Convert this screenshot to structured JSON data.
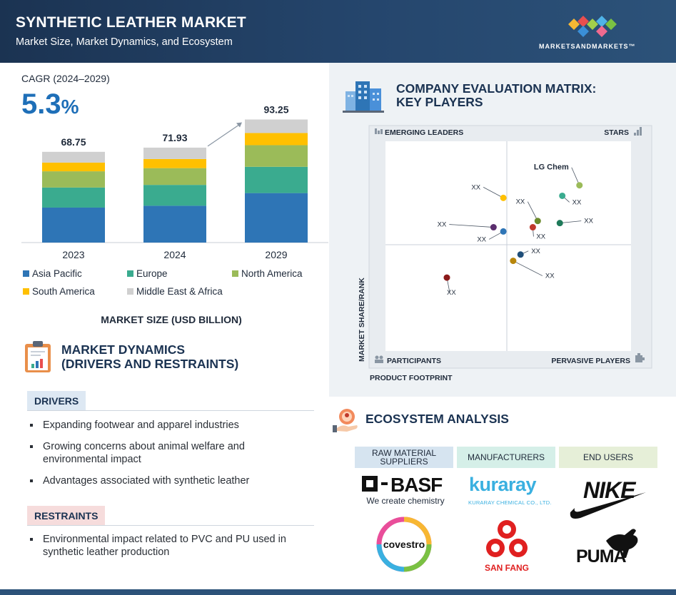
{
  "header": {
    "title": "SYNTHETIC LEATHER MARKET",
    "subtitle": "Market Size, Market Dynamics, and Ecosystem",
    "logo_text": "MARKETSANDMARKETS™",
    "bg_color": "#1b3352"
  },
  "cagr": {
    "label": "CAGR (2024–2029)",
    "value": "5.3",
    "unit": "%"
  },
  "chart_data": {
    "type": "bar",
    "stacked": true,
    "categories": [
      "2023",
      "2024",
      "2029"
    ],
    "totals": [
      68.75,
      71.93,
      93.25
    ],
    "total_labels": [
      "68.75",
      "71.93",
      "93.25"
    ],
    "series": [
      {
        "name": "Asia Pacific",
        "color": "#2e75b6",
        "values": [
          26.5,
          27.9,
          37.5
        ]
      },
      {
        "name": "Europe",
        "color": "#3aab8f",
        "values": [
          15.2,
          15.8,
          19.9
        ]
      },
      {
        "name": "North America",
        "color": "#9bbb59",
        "values": [
          12.3,
          12.7,
          16.4
        ]
      },
      {
        "name": "South America",
        "color": "#ffc000",
        "values": [
          6.6,
          6.9,
          9.2
        ]
      },
      {
        "name": "Middle East & Africa",
        "color": "#d0d0d0",
        "values": [
          8.15,
          8.63,
          10.25
        ]
      }
    ],
    "xlabel": "MARKET SIZE (USD BILLION)",
    "ylabel": "",
    "ylim": [
      0,
      100
    ],
    "grid": false,
    "legend_position": "bottom",
    "growth_arrow": true
  },
  "dynamics": {
    "title_line1": "MARKET DYNAMICS",
    "title_line2": "(DRIVERS AND RESTRAINTS)",
    "drivers_label": "DRIVERS",
    "drivers_color": "#dde8f3",
    "drivers": [
      "Expanding footwear and apparel industries",
      "Growing concerns about animal welfare and",
      "environmental impact",
      "Advantages associated with synthetic leather"
    ],
    "restraints_label": "RESTRAINTS",
    "restraints_color": "#f6dcdc",
    "restraints": [
      "Environmental impact related to PVC and PU used in",
      "synthetic leather production"
    ]
  },
  "matrix": {
    "title_line1": "COMPANY EVALUATION MATRIX:",
    "title_line2": "KEY PLAYERS",
    "quadrants": {
      "top_left": "EMERGING LEADERS",
      "top_right": "STARS",
      "bottom_left": "PARTICIPANTS",
      "bottom_right": "PERVASIVE PLAYERS"
    },
    "y_axis": "MARKET SHARE/RANK",
    "x_axis": "PRODUCT FOOTPRINT",
    "players": [
      {
        "label": "LG Chem",
        "footprint": 0.79,
        "share": 0.79,
        "color": "#9bbb59",
        "bold": true
      },
      {
        "label": "XX",
        "footprint": 0.72,
        "share": 0.74,
        "color": "#3aab8f"
      },
      {
        "label": "XX",
        "footprint": 0.48,
        "share": 0.73,
        "color": "#ffc000"
      },
      {
        "label": "XX",
        "footprint": 0.62,
        "share": 0.62,
        "color": "#6a8a2a"
      },
      {
        "label": "XX",
        "footprint": 0.71,
        "share": 0.61,
        "color": "#1f7a5a"
      },
      {
        "label": "XX",
        "footprint": 0.6,
        "share": 0.59,
        "color": "#c0392b"
      },
      {
        "label": "XX",
        "footprint": 0.44,
        "share": 0.59,
        "color": "#5b2e6e"
      },
      {
        "label": "XX",
        "footprint": 0.48,
        "share": 0.57,
        "color": "#2e75b6"
      },
      {
        "label": "XX",
        "footprint": 0.55,
        "share": 0.46,
        "color": "#1f4e79"
      },
      {
        "label": "XX",
        "footprint": 0.52,
        "share": 0.43,
        "color": "#b8860b"
      },
      {
        "label": "XX",
        "footprint": 0.25,
        "share": 0.35,
        "color": "#8b1a1a"
      }
    ]
  },
  "ecosystem": {
    "title": "ECOSYSTEM ANALYSIS",
    "columns": [
      {
        "label_line1": "RAW MATERIAL",
        "label_line2": "SUPPLIERS",
        "color": "#d6e4f0"
      },
      {
        "label_line1": "MANUFACTURERS",
        "label_line2": "",
        "color": "#d5efe8"
      },
      {
        "label_line1": "END USERS",
        "label_line2": "",
        "color": "#e6efd8"
      }
    ],
    "logos": {
      "basf": "BASF",
      "basf_tagline": "We create chemistry",
      "covestro": "covestro",
      "kuraray": "kuraray",
      "kuraray_sub": "KURARAY CHEMICAL CO., LTD.",
      "sanfang": "SAN FANG",
      "nike": "NIKE",
      "puma": "PUMA"
    }
  }
}
